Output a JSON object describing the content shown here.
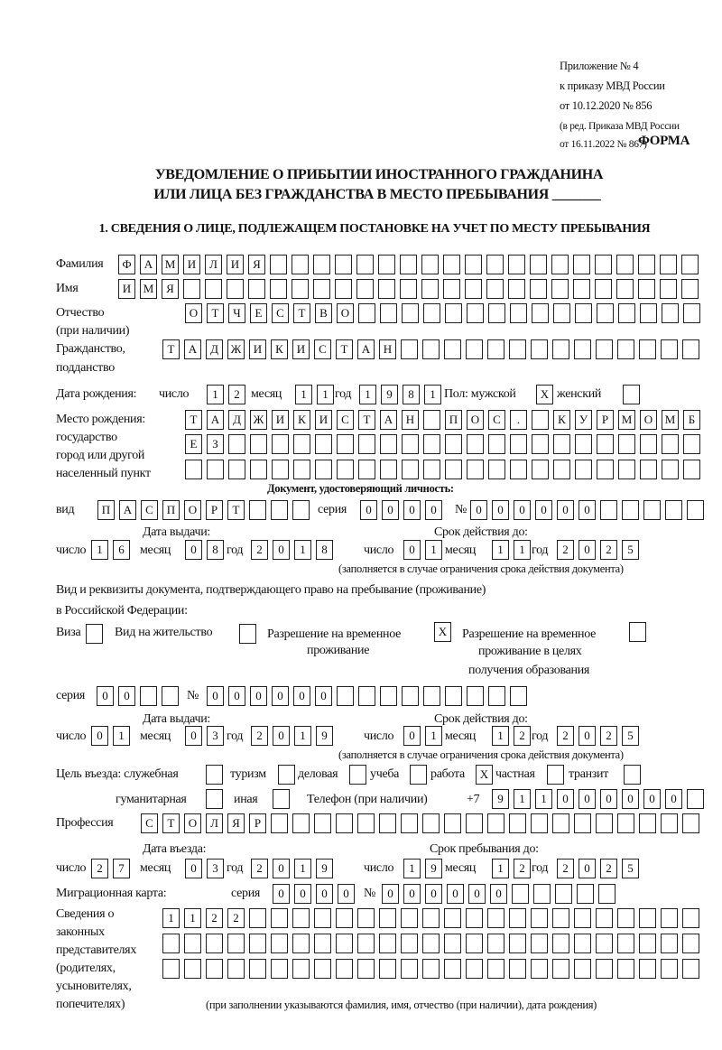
{
  "header": {
    "appendix": "Приложение № 4",
    "order": "к приказу МВД России",
    "order_date": "от 10.12.2020 № 856",
    "edition": "(в ред. Приказа МВД России",
    "edition_date": "от 16.11.2022 № 867)",
    "form_label": "ФОРМА"
  },
  "title": {
    "line1": "УВЕДОМЛЕНИЕ О ПРИБЫТИИ ИНОСТРАННОГО ГРАЖДАНИНА",
    "line2": "ИЛИ ЛИЦА БЕЗ ГРАЖДАНСТВА В МЕСТО ПРЕБЫВАНИЯ _______"
  },
  "section1": {
    "heading": "1. СВЕДЕНИЯ О ЛИЦЕ, ПОДЛЕЖАЩЕМ ПОСТАНОВКЕ НА УЧЕТ ПО МЕСТУ ПРЕБЫВАНИЯ",
    "labels": {
      "surname": "Фамилия",
      "name": "Имя",
      "patronymic": "Отчество",
      "patronymic_note": "(при наличии)",
      "citizenship": "Гражданство,",
      "citizenship2": "подданство",
      "birth_date": "Дата рождения:",
      "day": "число",
      "month": "месяц",
      "year": "год",
      "sex": "Пол: мужской",
      "female": "женский",
      "birth_place": "Место рождения:",
      "birth_place2": "государство",
      "birth_place3": "город или другой",
      "birth_place4": "населенный пункт",
      "id_doc": "Документ, удостоверяющий личность:",
      "kind": "вид",
      "series": "серия",
      "number": "№",
      "issue_date": "Дата выдачи:",
      "valid_until": "Срок действия до:",
      "validity_note": "(заполняется в случае ограничения срока действия документа)",
      "stay_doc": "Вид и реквизиты документа, подтверждающего право на пребывание (проживание)",
      "stay_doc2": "в Российской Федерации:",
      "visa": "Виза",
      "residence": "Вид на жительство",
      "trp": "Разрешение на временное",
      "trp2": "проживание",
      "trp_edu": "Разрешение на временное",
      "trp_edu2": "проживание в целях",
      "trp_edu3": "получения образования",
      "purpose": "Цель въезда: служебная",
      "tourism": "туризм",
      "business": "деловая",
      "study": "учеба",
      "work": "работа",
      "private": "частная",
      "transit": "транзит",
      "humanitarian": "гуманитарная",
      "other": "иная",
      "phone": "Телефон (при наличии)",
      "phone_prefix": "+7",
      "profession": "Профессия",
      "entry_date": "Дата въезда:",
      "stay_until": "Срок пребывания до:",
      "migration_card": "Миграционная карта:",
      "reps1": "Сведения о",
      "reps2": "законных",
      "reps3": "представителях",
      "reps4": "(родителях,",
      "reps5": "усыновителях,",
      "reps6": "попечителях)",
      "reps_note": "(при заполнении указываются фамилия, имя, отчество (при наличии), дата рождения)"
    },
    "values": {
      "surname": "ФАМИЛИЯ",
      "name": "ИМЯ",
      "patronymic": "ОТЧЕСТВО",
      "citizenship": "ТАДЖИКИСТАН",
      "birth_day": "12",
      "birth_month": "11",
      "birth_year": "1981",
      "sex_male": "X",
      "sex_female": "",
      "birth_place_1": "ТАДЖИКИСТАН ПОС. КУРМОМБ",
      "birth_place_2": "ЕЗ",
      "birth_place_3": "",
      "id_kind": "ПАСПОРТ",
      "id_series": "0000",
      "id_number": "000000",
      "id_issue_day": "16",
      "id_issue_month": "08",
      "id_issue_year": "2018",
      "id_valid_day": "01",
      "id_valid_month": "11",
      "id_valid_year": "2025",
      "visa": "",
      "residence": "",
      "trp": "X",
      "trp_edu": "",
      "stay_series": "00",
      "stay_number": "000000",
      "stay_issue_day": "01",
      "stay_issue_month": "03",
      "stay_issue_year": "2019",
      "stay_valid_day": "01",
      "stay_valid_month": "12",
      "stay_valid_year": "2025",
      "purpose_official": "",
      "purpose_tourism": "",
      "purpose_business": "",
      "purpose_study": "",
      "purpose_work": "X",
      "purpose_private": "",
      "purpose_transit": "",
      "purpose_humanitarian": "",
      "purpose_other": "",
      "phone": "911000000",
      "profession": "СТОЛЯР",
      "entry_day": "27",
      "entry_month": "03",
      "entry_year": "2019",
      "stay_until_day": "19",
      "stay_until_month": "12",
      "stay_until_year": "2025",
      "mc_series": "0000",
      "mc_number": "000000",
      "reps_1": "1122",
      "reps_2": "",
      "reps_3": ""
    }
  }
}
